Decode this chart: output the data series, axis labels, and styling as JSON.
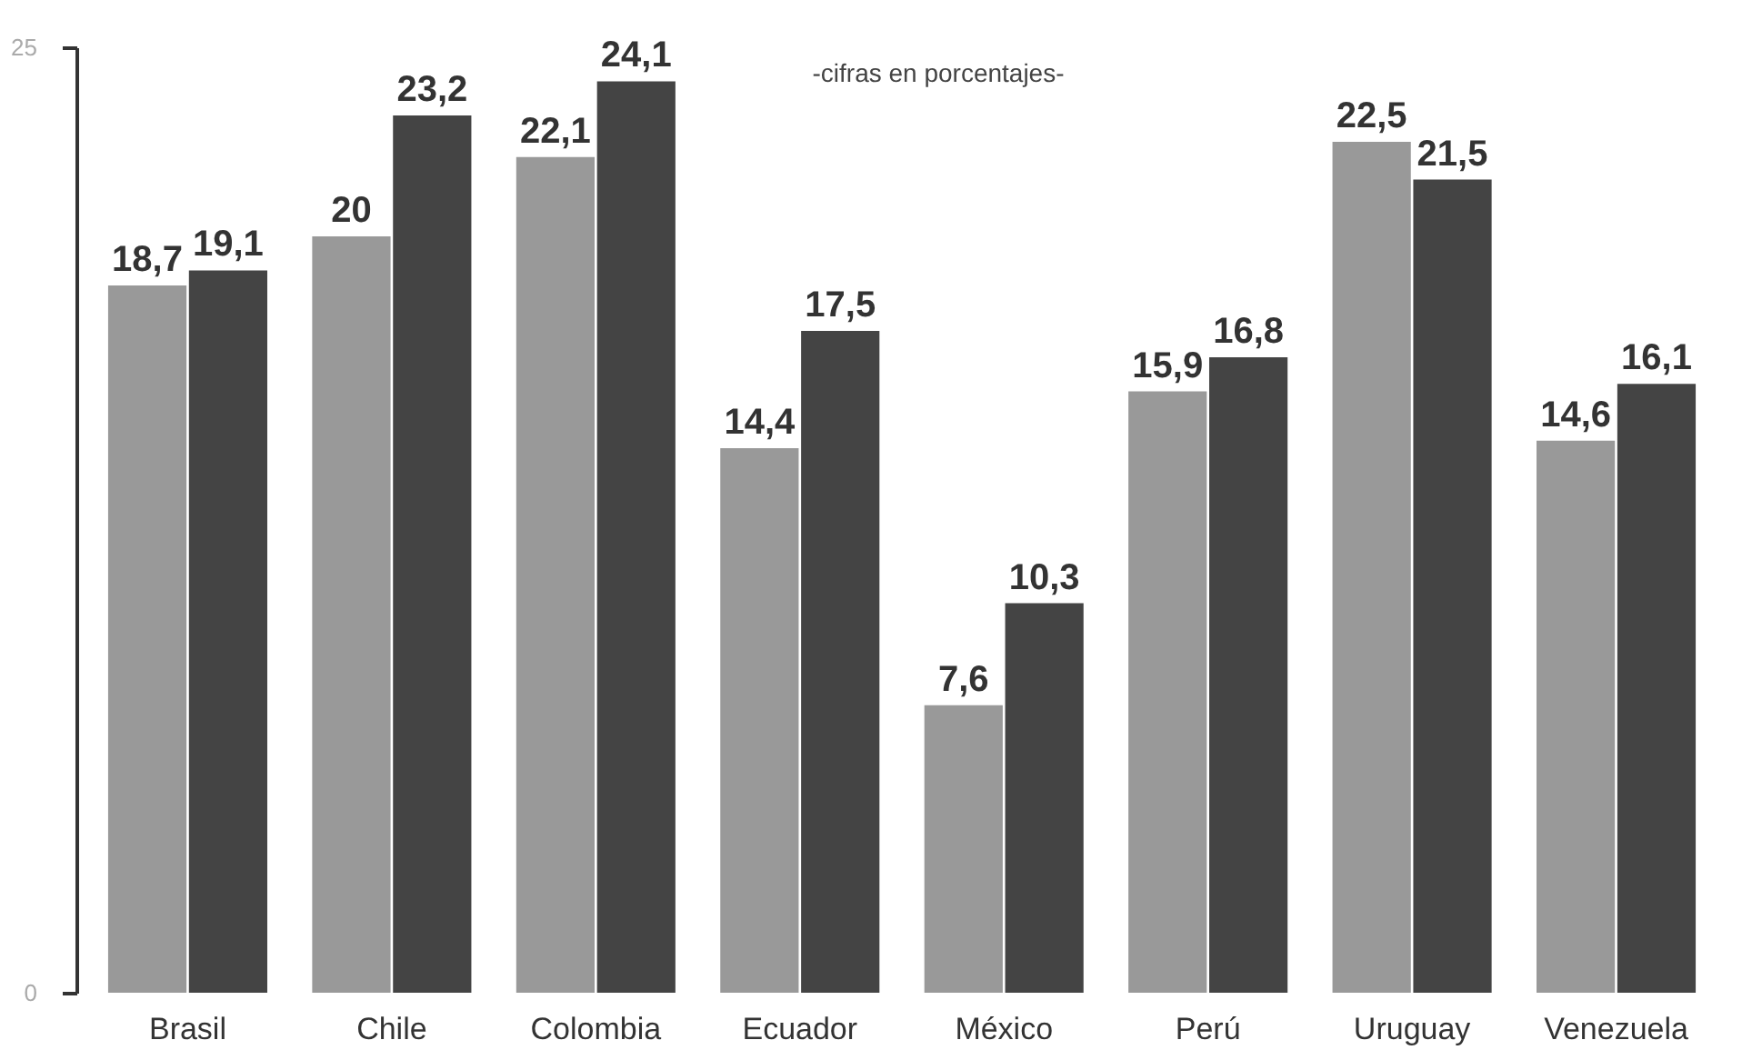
{
  "chart_data": {
    "type": "bar",
    "categories": [
      "Brasil",
      "Chile",
      "Colombia",
      "Ecuador",
      "México",
      "Perú",
      "Uruguay",
      "Venezuela"
    ],
    "series": [
      {
        "color": "#999999",
        "values": [
          18.7,
          20,
          22.1,
          14.4,
          7.6,
          15.9,
          22.5,
          14.6
        ],
        "value_labels": [
          "18,7",
          "20",
          "22,1",
          "14,4",
          "7,6",
          "15,9",
          "22,5",
          "14,6"
        ]
      },
      {
        "color": "#444444",
        "values": [
          19.1,
          23.2,
          24.1,
          17.5,
          10.3,
          16.8,
          21.5,
          16.1
        ],
        "value_labels": [
          "19,1",
          "23,2",
          "24,1",
          "17,5",
          "10,3",
          "16,8",
          "21,5",
          "16,1"
        ]
      }
    ],
    "ylim": [
      0,
      25
    ],
    "yticks": [
      0,
      25
    ],
    "grid": false,
    "legend": false,
    "annotations": [
      "-cifras en porcentajes-"
    ]
  }
}
